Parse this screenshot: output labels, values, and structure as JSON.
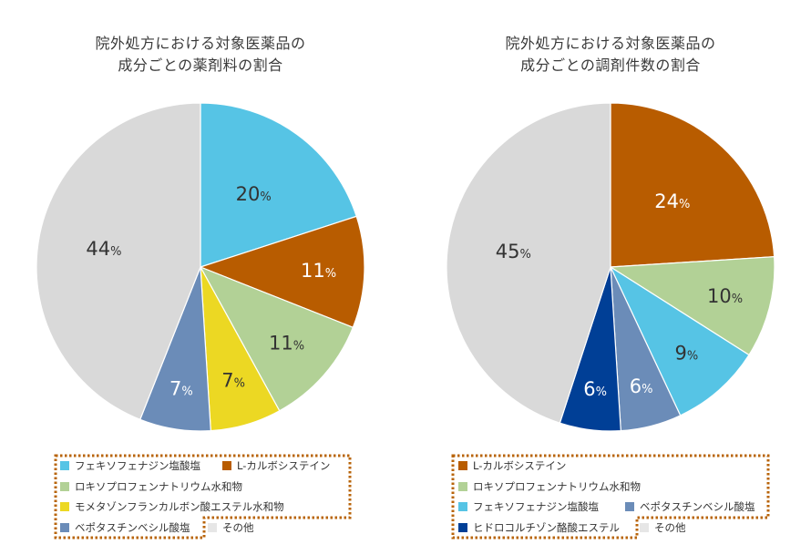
{
  "chart_data": [
    {
      "type": "pie",
      "title_lines": [
        "院外処方における対象医薬品の",
        "成分ごとの薬剤料の割合"
      ],
      "slices": [
        {
          "label": "フェキソフェナジン塩酸塩",
          "value": 20,
          "color": "#56c4e5",
          "label_text": "20",
          "label_color": "#333333"
        },
        {
          "label": "L-カルボシステイン",
          "value": 11,
          "color": "#b85c00",
          "label_text": "11",
          "label_color": "#ffffff"
        },
        {
          "label": "ロキソプロフェンナトリウム水和物",
          "value": 11,
          "color": "#b2d196",
          "label_text": "11",
          "label_color": "#333333"
        },
        {
          "label": "モメタゾンフランカルボン酸エステル水和物",
          "value": 7,
          "color": "#ecd823",
          "label_text": "7",
          "label_color": "#333333"
        },
        {
          "label": "ベポタスチンベシル酸塩",
          "value": 7,
          "color": "#6b8cb8",
          "label_text": "7",
          "label_color": "#ffffff"
        },
        {
          "label": "その他",
          "value": 44,
          "color": "#d9d9d9",
          "label_text": "44",
          "label_color": "#333333"
        }
      ],
      "unit_suffix": "%",
      "start_angle": "12 o'clock",
      "direction": "clockwise",
      "legend": {
        "placement": "bottom",
        "rows": [
          [
            "フェキソフェナジン塩酸塩",
            "L-カルボシステイン"
          ],
          [
            "ロキソプロフェンナトリウム水和物"
          ],
          [
            "モメタゾンフランカルボン酸エステル水和物"
          ],
          [
            "ベポタスチンベシル酸塩",
            "その他"
          ]
        ]
      }
    },
    {
      "type": "pie",
      "title_lines": [
        "院外処方における対象医薬品の",
        "成分ごとの調剤件数の割合"
      ],
      "slices": [
        {
          "label": "L-カルボシステイン",
          "value": 24,
          "color": "#b85c00",
          "label_text": "24",
          "label_color": "#ffffff"
        },
        {
          "label": "ロキソプロフェンナトリウム水和物",
          "value": 10,
          "color": "#b2d196",
          "label_text": "10",
          "label_color": "#333333"
        },
        {
          "label": "フェキソフェナジン塩酸塩",
          "value": 9,
          "color": "#56c4e5",
          "label_text": "9",
          "label_color": "#333333"
        },
        {
          "label": "ベポタスチンベシル酸塩",
          "value": 6,
          "color": "#6b8cb8",
          "label_text": "6",
          "label_color": "#ffffff"
        },
        {
          "label": "ヒドロコルチゾン酪酸エステル",
          "value": 6,
          "color": "#003f96",
          "label_text": "6",
          "label_color": "#ffffff"
        },
        {
          "label": "その他",
          "value": 45,
          "color": "#d9d9d9",
          "label_text": "45",
          "label_color": "#333333"
        }
      ],
      "unit_suffix": "%",
      "start_angle": "12 o'clock",
      "direction": "clockwise",
      "legend": {
        "placement": "bottom",
        "rows": [
          [
            "L-カルボシステイン"
          ],
          [
            "ロキソプロフェンナトリウム水和物"
          ],
          [
            "フェキソフェナジン塩酸塩",
            "ベポタスチンベシル酸塩"
          ],
          [
            "ヒドロコルチゾン酪酸エステル",
            "その他"
          ]
        ]
      }
    }
  ],
  "legend_highlight_color": "#b8640a",
  "legend_other_swatch_color": "#e6e6e6"
}
